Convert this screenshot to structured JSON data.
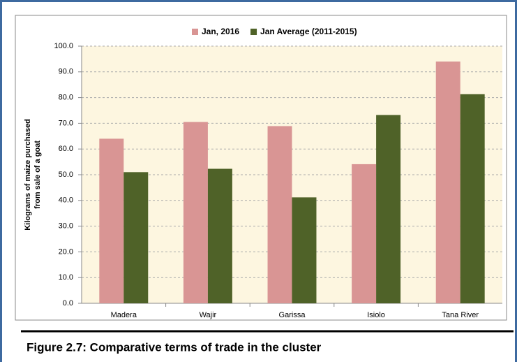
{
  "chart_data": {
    "type": "bar",
    "caption": "Figure 2.7:   Comparative terms of trade in the cluster",
    "y_label_lines": [
      "Kilograms of maize purchased",
      "from sale of a goat"
    ],
    "categories": [
      "Madera",
      "Wajir",
      "Garissa",
      "Isiolo",
      "Tana River"
    ],
    "series": [
      {
        "name": "Jan, 2016",
        "color": "#d99594",
        "values": [
          64.0,
          70.5,
          68.9,
          54.1,
          94.0
        ]
      },
      {
        "name": "Jan Average (2011-2015)",
        "color": "#4f6228",
        "values": [
          51.0,
          52.3,
          41.2,
          73.2,
          81.3
        ]
      }
    ],
    "ylim": [
      0,
      100
    ],
    "yticks": [
      {
        "value": 0,
        "label": "0.0"
      },
      {
        "value": 10,
        "label": "10.0"
      },
      {
        "value": 20,
        "label": "20.0"
      },
      {
        "value": 30,
        "label": "30.0"
      },
      {
        "value": 40,
        "label": "40.0"
      },
      {
        "value": 50,
        "label": "50.0"
      },
      {
        "value": 60,
        "label": "60.0"
      },
      {
        "value": 70,
        "label": "70.0"
      },
      {
        "value": 80,
        "label": "80.0"
      },
      {
        "value": 90,
        "label": "90.0"
      },
      {
        "value": 100,
        "label": "100.0"
      }
    ],
    "grid": true,
    "legend": "top"
  }
}
